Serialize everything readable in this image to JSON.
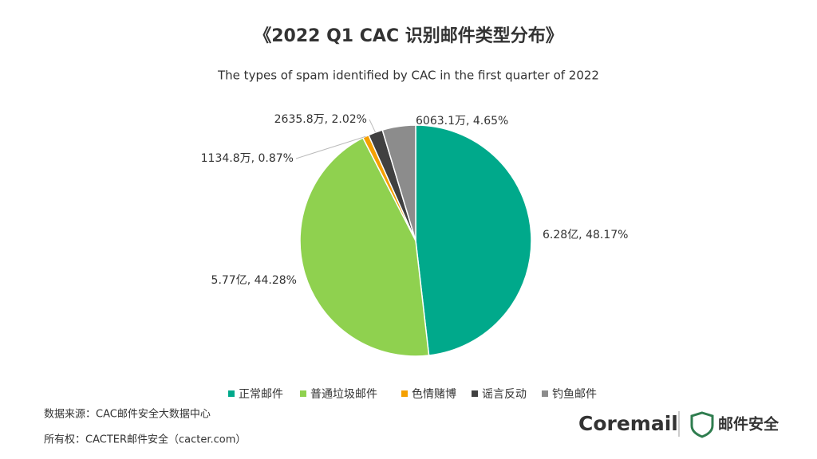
{
  "chart_data": {
    "type": "pie",
    "title": "《2022 Q1 CAC 识别邮件类型分布》",
    "subtitle": "The types of spam identified by CAC in the first quarter of 2022",
    "categories": [
      "正常邮件",
      "普通垃圾邮件",
      "色情赌博",
      "谣言反动",
      "钓鱼邮件"
    ],
    "values": [
      48.17,
      44.28,
      0.87,
      2.02,
      4.65
    ],
    "value_labels": [
      "6.28亿, 48.17%",
      "5.77亿, 44.28%",
      "1134.8万, 0.87%",
      "2635.8万, 2.02%",
      "6063.1万, 4.65%"
    ],
    "colors": [
      "#00a98b",
      "#8fd14f",
      "#f5a000",
      "#404040",
      "#8c8c8c"
    ],
    "legend": "bottom"
  },
  "footer": {
    "source": "数据来源：CAC邮件安全大数据中心",
    "copyright": "所有权：CACTER邮件安全（cacter.com）",
    "logo_coremail": "Coremail",
    "logo_security": "邮件安全"
  }
}
